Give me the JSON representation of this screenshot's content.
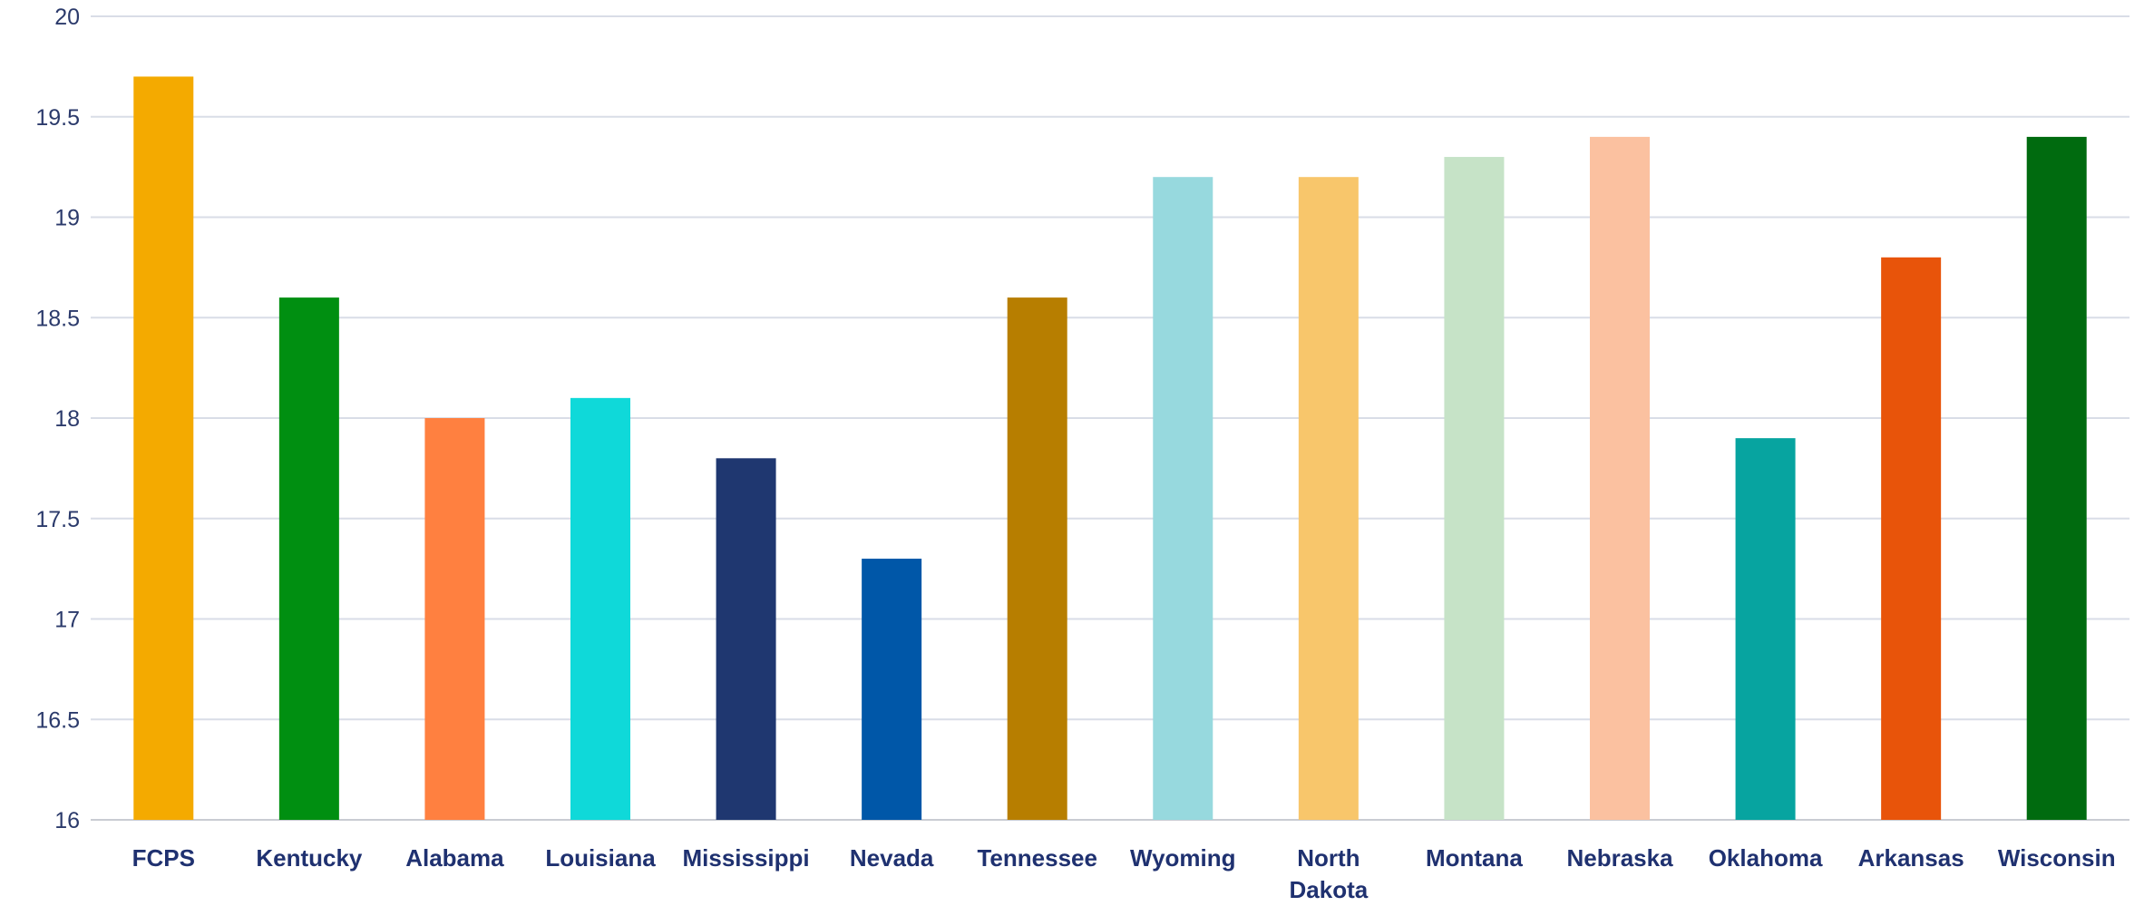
{
  "chart_data": {
    "type": "bar",
    "title": "",
    "xlabel": "",
    "ylabel": "",
    "ylim": [
      16,
      20
    ],
    "yticks": [
      "16",
      "16.5",
      "17",
      "17.5",
      "18",
      "18.5",
      "19",
      "19.5",
      "20"
    ],
    "grid": true,
    "legend": "none",
    "categories": [
      [
        "FCPS"
      ],
      [
        "Kentucky"
      ],
      [
        "Alabama"
      ],
      [
        "Louisiana"
      ],
      [
        "Mississippi"
      ],
      [
        "Nevada"
      ],
      [
        "Tennessee"
      ],
      [
        "Wyoming"
      ],
      [
        "North",
        "Dakota"
      ],
      [
        "Montana"
      ],
      [
        "Nebraska"
      ],
      [
        "Oklahoma"
      ],
      [
        "Arkansas"
      ],
      [
        "Wisconsin"
      ]
    ],
    "values": [
      19.7,
      18.6,
      18.0,
      18.1,
      17.8,
      17.3,
      18.6,
      19.2,
      19.2,
      19.3,
      19.4,
      17.9,
      18.8,
      19.4
    ],
    "colors": [
      "#f4aa00",
      "#008f11",
      "#ff8040",
      "#0fd9d9",
      "#1f3770",
      "#0057a8",
      "#b77e00",
      "#97d9de",
      "#f8c66b",
      "#c6e3c7",
      "#fbc1a0",
      "#07a4a0",
      "#e8540a",
      "#006b0f"
    ]
  }
}
